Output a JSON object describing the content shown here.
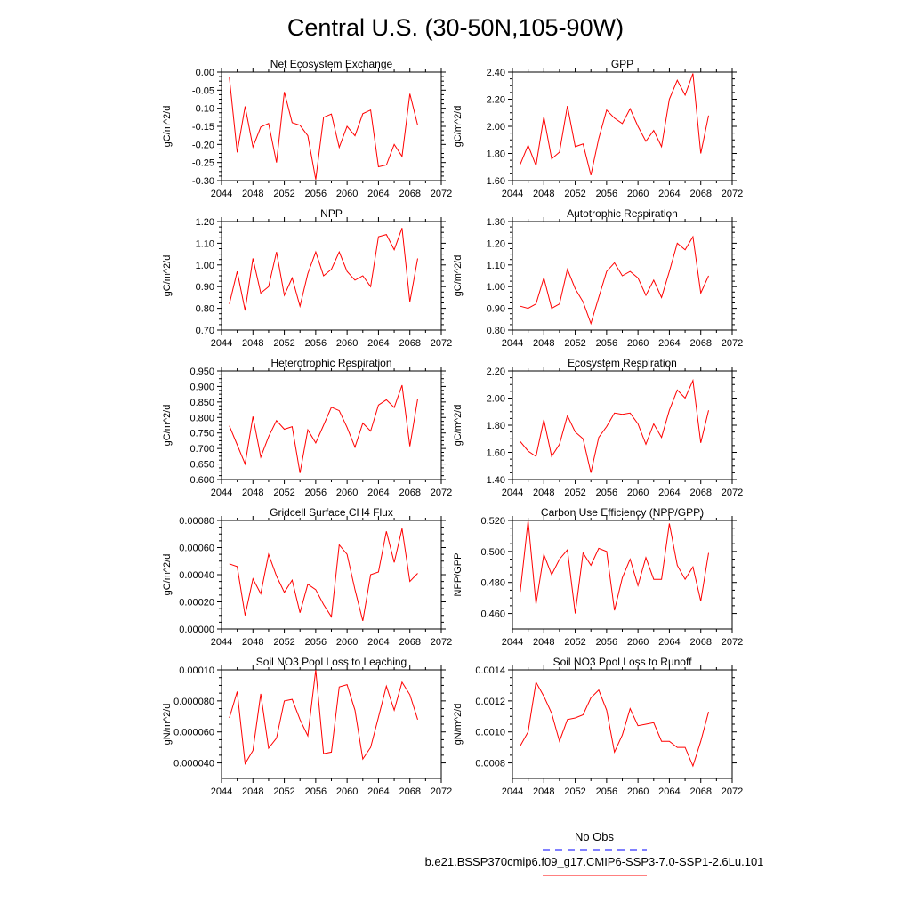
{
  "figure": {
    "title": "Central U.S. (30-50N,105-90W)"
  },
  "legend": {
    "entries": [
      {
        "label": "No Obs",
        "color": "#0000ff",
        "dash": true
      },
      {
        "label": "b.e21.BSSP370cmip6.f09_g17.CMIP6-SSP3-7.0-SSP1-2.6Lu.101",
        "color": "#ff0000",
        "dash": false
      }
    ]
  },
  "chart_data": [
    {
      "type": "line",
      "title": "Net Ecosystem Exchange",
      "ylabel": "gC/m^2/d",
      "xlim": [
        2044,
        2072
      ],
      "xticks": [
        "2044",
        "2048",
        "2052",
        "2056",
        "2060",
        "2064",
        "2068",
        "2072"
      ],
      "ylim": [
        -0.3,
        0.0
      ],
      "yticks": [
        "0.00",
        "-0.05",
        "-0.10",
        "-0.15",
        "-0.20",
        "-0.25",
        "-0.30"
      ],
      "x": [
        2045,
        2046,
        2047,
        2048,
        2049,
        2050,
        2051,
        2052,
        2053,
        2054,
        2055,
        2056,
        2057,
        2058,
        2059,
        2060,
        2061,
        2062,
        2063,
        2064,
        2065,
        2066,
        2067,
        2068,
        2069
      ],
      "series": [
        {
          "color": "#ff0000",
          "values": [
            -0.015,
            -0.222,
            -0.095,
            -0.207,
            -0.152,
            -0.142,
            -0.25,
            -0.055,
            -0.14,
            -0.147,
            -0.176,
            -0.297,
            -0.125,
            -0.116,
            -0.208,
            -0.15,
            -0.176,
            -0.115,
            -0.105,
            -0.262,
            -0.257,
            -0.2,
            -0.233,
            -0.06,
            -0.147
          ]
        }
      ]
    },
    {
      "type": "line",
      "title": "GPP",
      "ylabel": "gC/m^2/d",
      "xlim": [
        2044,
        2072
      ],
      "xticks": [
        "2044",
        "2048",
        "2052",
        "2056",
        "2060",
        "2064",
        "2068",
        "2072"
      ],
      "ylim": [
        1.6,
        2.4
      ],
      "yticks": [
        "2.40",
        "2.20",
        "2.00",
        "1.80",
        "1.60"
      ],
      "x": [
        2045,
        2046,
        2047,
        2048,
        2049,
        2050,
        2051,
        2052,
        2053,
        2054,
        2055,
        2056,
        2057,
        2058,
        2059,
        2060,
        2061,
        2062,
        2063,
        2064,
        2065,
        2066,
        2067,
        2068,
        2069
      ],
      "series": [
        {
          "color": "#ff0000",
          "values": [
            1.72,
            1.86,
            1.71,
            2.07,
            1.76,
            1.81,
            2.15,
            1.85,
            1.87,
            1.64,
            1.91,
            2.12,
            2.06,
            2.02,
            2.13,
            2.0,
            1.89,
            1.97,
            1.85,
            2.2,
            2.34,
            2.23,
            2.39,
            1.8,
            2.08
          ]
        }
      ]
    },
    {
      "type": "line",
      "title": "NPP",
      "ylabel": "gC/m^2/d",
      "xlim": [
        2044,
        2072
      ],
      "xticks": [
        "2044",
        "2048",
        "2052",
        "2056",
        "2060",
        "2064",
        "2068",
        "2072"
      ],
      "ylim": [
        0.7,
        1.2
      ],
      "yticks": [
        "1.20",
        "1.10",
        "1.00",
        "0.90",
        "0.80",
        "0.70"
      ],
      "x": [
        2045,
        2046,
        2047,
        2048,
        2049,
        2050,
        2051,
        2052,
        2053,
        2054,
        2055,
        2056,
        2057,
        2058,
        2059,
        2060,
        2061,
        2062,
        2063,
        2064,
        2065,
        2066,
        2067,
        2068,
        2069
      ],
      "series": [
        {
          "color": "#ff0000",
          "values": [
            0.82,
            0.97,
            0.79,
            1.03,
            0.87,
            0.9,
            1.06,
            0.86,
            0.94,
            0.81,
            0.96,
            1.06,
            0.95,
            0.98,
            1.06,
            0.97,
            0.93,
            0.95,
            0.9,
            1.13,
            1.14,
            1.07,
            1.17,
            0.83,
            1.03
          ]
        }
      ]
    },
    {
      "type": "line",
      "title": "Autotrophic Respiration",
      "ylabel": "gC/m^2/d",
      "xlim": [
        2044,
        2072
      ],
      "xticks": [
        "2044",
        "2048",
        "2052",
        "2056",
        "2060",
        "2064",
        "2068",
        "2072"
      ],
      "ylim": [
        0.8,
        1.3
      ],
      "yticks": [
        "1.30",
        "1.20",
        "1.10",
        "1.00",
        "0.90",
        "0.80"
      ],
      "x": [
        2045,
        2046,
        2047,
        2048,
        2049,
        2050,
        2051,
        2052,
        2053,
        2054,
        2055,
        2056,
        2057,
        2058,
        2059,
        2060,
        2061,
        2062,
        2063,
        2064,
        2065,
        2066,
        2067,
        2068,
        2069
      ],
      "series": [
        {
          "color": "#ff0000",
          "values": [
            0.91,
            0.9,
            0.92,
            1.04,
            0.9,
            0.92,
            1.08,
            0.99,
            0.93,
            0.83,
            0.95,
            1.07,
            1.11,
            1.05,
            1.07,
            1.04,
            0.96,
            1.03,
            0.95,
            1.07,
            1.2,
            1.17,
            1.23,
            0.97,
            1.05
          ]
        }
      ]
    },
    {
      "type": "line",
      "title": "Heterotrophic Respiration",
      "ylabel": "gC/m^2/d",
      "xlim": [
        2044,
        2072
      ],
      "xticks": [
        "2044",
        "2048",
        "2052",
        "2056",
        "2060",
        "2064",
        "2068",
        "2072"
      ],
      "ylim": [
        0.6,
        0.95
      ],
      "yticks": [
        "0.950",
        "0.900",
        "0.850",
        "0.800",
        "0.750",
        "0.700",
        "0.650",
        "0.600"
      ],
      "x": [
        2045,
        2046,
        2047,
        2048,
        2049,
        2050,
        2051,
        2052,
        2053,
        2054,
        2055,
        2056,
        2057,
        2058,
        2059,
        2060,
        2061,
        2062,
        2063,
        2064,
        2065,
        2066,
        2067,
        2068,
        2069
      ],
      "series": [
        {
          "color": "#ff0000",
          "values": [
            0.773,
            0.712,
            0.65,
            0.803,
            0.672,
            0.738,
            0.79,
            0.762,
            0.77,
            0.621,
            0.76,
            0.718,
            0.775,
            0.833,
            0.822,
            0.768,
            0.704,
            0.782,
            0.756,
            0.84,
            0.857,
            0.832,
            0.904,
            0.707,
            0.86
          ]
        }
      ]
    },
    {
      "type": "line",
      "title": "Ecosystem Respiration",
      "ylabel": "gC/m^2/d",
      "xlim": [
        2044,
        2072
      ],
      "xticks": [
        "2044",
        "2048",
        "2052",
        "2056",
        "2060",
        "2064",
        "2068",
        "2072"
      ],
      "ylim": [
        1.4,
        2.2
      ],
      "yticks": [
        "2.20",
        "2.00",
        "1.80",
        "1.60",
        "1.40"
      ],
      "x": [
        2045,
        2046,
        2047,
        2048,
        2049,
        2050,
        2051,
        2052,
        2053,
        2054,
        2055,
        2056,
        2057,
        2058,
        2059,
        2060,
        2061,
        2062,
        2063,
        2064,
        2065,
        2066,
        2067,
        2068,
        2069
      ],
      "series": [
        {
          "color": "#ff0000",
          "values": [
            1.68,
            1.61,
            1.57,
            1.84,
            1.57,
            1.66,
            1.87,
            1.75,
            1.7,
            1.45,
            1.71,
            1.79,
            1.89,
            1.88,
            1.89,
            1.81,
            1.66,
            1.81,
            1.71,
            1.91,
            2.06,
            2.0,
            2.13,
            1.67,
            1.91
          ]
        }
      ]
    },
    {
      "type": "line",
      "title": "Gridcell Surface CH4 Flux",
      "ylabel": "gC/m^2/d",
      "xlim": [
        2044,
        2072
      ],
      "xticks": [
        "2044",
        "2048",
        "2052",
        "2056",
        "2060",
        "2064",
        "2068",
        "2072"
      ],
      "ylim": [
        0.0,
        0.0008
      ],
      "yticks": [
        "0.00080",
        "0.00060",
        "0.00040",
        "0.00020",
        "0.00000"
      ],
      "x": [
        2045,
        2046,
        2047,
        2048,
        2049,
        2050,
        2051,
        2052,
        2053,
        2054,
        2055,
        2056,
        2057,
        2058,
        2059,
        2060,
        2061,
        2062,
        2063,
        2064,
        2065,
        2066,
        2067,
        2068,
        2069
      ],
      "series": [
        {
          "color": "#ff0000",
          "values": [
            0.00048,
            0.00046,
            0.0001,
            0.00037,
            0.00026,
            0.00055,
            0.00039,
            0.00027,
            0.00036,
            0.00012,
            0.00033,
            0.00029,
            0.00018,
            9e-05,
            0.00062,
            0.00055,
            0.00029,
            6e-05,
            0.0004,
            0.00042,
            0.00072,
            0.00049,
            0.00074,
            0.00035,
            0.00041
          ]
        }
      ]
    },
    {
      "type": "line",
      "title": "Carbon Use Efficiency (NPP/GPP)",
      "ylabel": "NPP/GPP",
      "xlim": [
        2044,
        2072
      ],
      "xticks": [
        "2044",
        "2048",
        "2052",
        "2056",
        "2060",
        "2064",
        "2068",
        "2072"
      ],
      "ylim": [
        0.45,
        0.52
      ],
      "yticks": [
        "0.520",
        "0.500",
        "0.480",
        "0.460"
      ],
      "x": [
        2045,
        2046,
        2047,
        2048,
        2049,
        2050,
        2051,
        2052,
        2053,
        2054,
        2055,
        2056,
        2057,
        2058,
        2059,
        2060,
        2061,
        2062,
        2063,
        2064,
        2065,
        2066,
        2067,
        2068,
        2069
      ],
      "series": [
        {
          "color": "#ff0000",
          "values": [
            0.474,
            0.52,
            0.466,
            0.498,
            0.485,
            0.495,
            0.501,
            0.46,
            0.499,
            0.491,
            0.502,
            0.5,
            0.462,
            0.483,
            0.495,
            0.478,
            0.496,
            0.482,
            0.482,
            0.518,
            0.491,
            0.482,
            0.49,
            0.468,
            0.499
          ]
        }
      ]
    },
    {
      "type": "line",
      "title": "Soil NO3 Pool Loss to Leaching",
      "ylabel": "gN/m^2/d",
      "xlim": [
        2044,
        2072
      ],
      "xticks": [
        "2044",
        "2048",
        "2052",
        "2056",
        "2060",
        "2064",
        "2068",
        "2072"
      ],
      "ylim": [
        3e-05,
        0.0001
      ],
      "yticks": [
        "0.00010",
        "0.000080",
        "0.000060",
        "0.000040"
      ],
      "x": [
        2045,
        2046,
        2047,
        2048,
        2049,
        2050,
        2051,
        2052,
        2053,
        2054,
        2055,
        2056,
        2057,
        2058,
        2059,
        2060,
        2061,
        2062,
        2063,
        2064,
        2065,
        2066,
        2067,
        2068,
        2069
      ],
      "series": [
        {
          "color": "#ff0000",
          "values": [
            6.9e-05,
            8.6e-05,
            3.95e-05,
            4.8e-05,
            8.45e-05,
            4.95e-05,
            5.6e-05,
            8e-05,
            8.1e-05,
            6.8e-05,
            5.75e-05,
            0.0001,
            4.6e-05,
            4.7e-05,
            8.9e-05,
            9.05e-05,
            7.4e-05,
            4.25e-05,
            5e-05,
            6.95e-05,
            8.95e-05,
            7.4e-05,
            9.2e-05,
            8.4e-05,
            6.8e-05
          ]
        }
      ]
    },
    {
      "type": "line",
      "title": "Soil NO3 Pool Loss to Runoff",
      "ylabel": "gN/m^2/d",
      "xlim": [
        2044,
        2072
      ],
      "xticks": [
        "2044",
        "2048",
        "2052",
        "2056",
        "2060",
        "2064",
        "2068",
        "2072"
      ],
      "ylim": [
        0.0007,
        0.0014
      ],
      "yticks": [
        "0.0014",
        "0.0012",
        "0.0010",
        "0.0008"
      ],
      "x": [
        2045,
        2046,
        2047,
        2048,
        2049,
        2050,
        2051,
        2052,
        2053,
        2054,
        2055,
        2056,
        2057,
        2058,
        2059,
        2060,
        2061,
        2062,
        2063,
        2064,
        2065,
        2066,
        2067,
        2068,
        2069
      ],
      "series": [
        {
          "color": "#ff0000",
          "values": [
            0.00091,
            0.001,
            0.00132,
            0.00123,
            0.00112,
            0.00094,
            0.00108,
            0.00109,
            0.00111,
            0.00122,
            0.00127,
            0.00114,
            0.00087,
            0.00098,
            0.00115,
            0.00104,
            0.00105,
            0.00106,
            0.00094,
            0.00094,
            0.0009,
            0.0009,
            0.00078,
            0.00094,
            0.00113
          ]
        }
      ]
    }
  ]
}
